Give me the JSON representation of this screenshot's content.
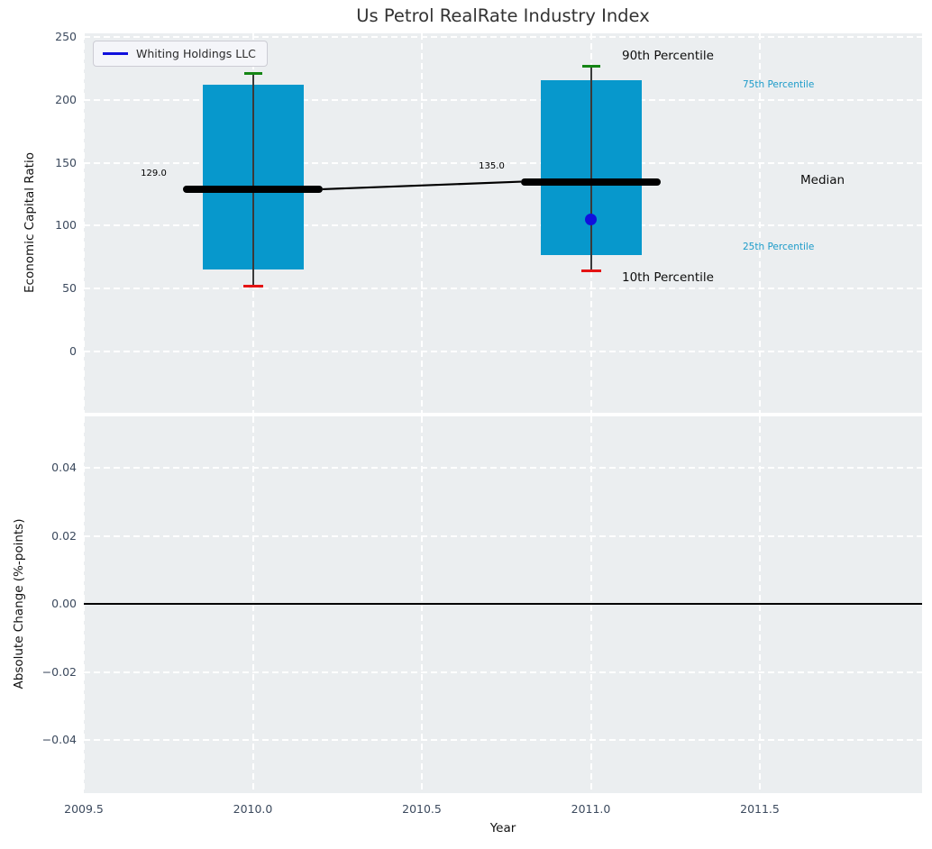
{
  "title": "Us Petrol RealRate Industry Index",
  "legend": {
    "series_label": "Whiting Holdings LLC",
    "line_color": "#1010DD"
  },
  "annotations": {
    "p90": "90th Percentile",
    "p75": "75th Percentile",
    "median": "Median",
    "p25": "25th Percentile",
    "p10": "10th Percentile"
  },
  "colors": {
    "box_fill": "#0798CC",
    "p90_cap": "#148514",
    "p10_cap": "#E41414",
    "median_line": "#000000",
    "company_marker": "#1010DD",
    "percentile_label_cyan": "#1C9BC9",
    "panel_background": "#EBEEF0",
    "grid": "#FFFFFF"
  },
  "chart_data": {
    "type": "boxplot",
    "title": "Us Petrol RealRate Industry Index",
    "xlabel": "Year",
    "legend_position": "upper left",
    "grid": true,
    "xtick_labels": [
      "2009.5",
      "2010.0",
      "2010.5",
      "2011.0",
      "2011.5"
    ],
    "xtick_values": [
      2009.5,
      2010.0,
      2010.5,
      2011.0,
      2011.5
    ],
    "xlim": [
      2009.5,
      2011.98
    ],
    "panels": [
      {
        "ylabel": "Economic Capital Ratio",
        "ytick_labels": [
          "250",
          "200",
          "150",
          "100",
          "50",
          "0"
        ],
        "ytick_values": [
          250,
          200,
          150,
          100,
          50,
          0
        ],
        "ylim": [
          -48.7,
          252.9
        ],
        "boxes": [
          {
            "x": 2010,
            "p10": 52,
            "q25": 65,
            "median": 129,
            "q75": 212,
            "p90": 221,
            "median_label": "129.0"
          },
          {
            "x": 2011,
            "p10": 64,
            "q25": 77,
            "median": 135,
            "q75": 216,
            "p90": 227,
            "median_label": "135.0"
          }
        ],
        "median_trend": [
          [
            2010,
            129
          ],
          [
            2011,
            135
          ]
        ],
        "company_point": {
          "x": 2011,
          "y": 105,
          "name": "Whiting Holdings LLC"
        }
      },
      {
        "ylabel": "Absolute Change (%-points)",
        "ytick_labels": [
          "0.04",
          "0.02",
          "0.00",
          "−0.02",
          "−0.04"
        ],
        "ytick_values": [
          0.04,
          0.02,
          0.0,
          -0.02,
          -0.04
        ],
        "ylim": [
          -0.0556,
          0.0551
        ],
        "zero_line": 0.0
      }
    ]
  }
}
